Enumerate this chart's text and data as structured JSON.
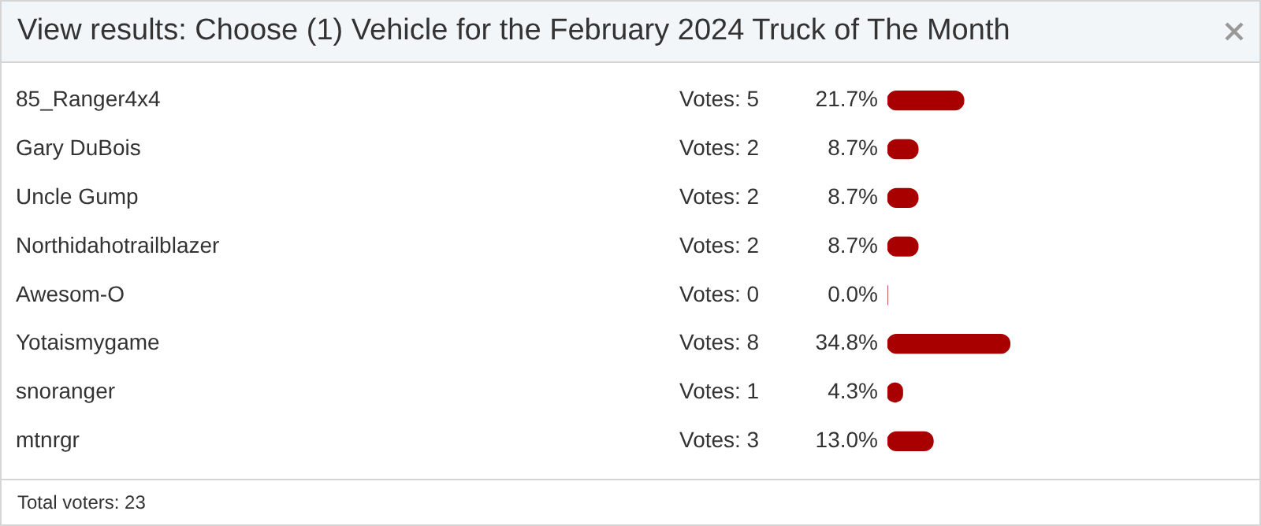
{
  "chart_data": {
    "type": "bar",
    "orientation": "horizontal",
    "title": "View results: Choose (1) Vehicle for the February 2024 Truck of The Month",
    "categories": [
      "85_Ranger4x4",
      "Gary DuBois",
      "Uncle Gump",
      "Northidahotrailblazer",
      "Awesom-O",
      "Yotaismygame",
      "snoranger",
      "mtnrgr"
    ],
    "values": [
      21.7,
      8.7,
      8.7,
      8.7,
      0.0,
      34.8,
      4.3,
      13.0
    ],
    "value_labels": [
      "21.7%",
      "8.7%",
      "8.7%",
      "8.7%",
      "0.0%",
      "34.8%",
      "4.3%",
      "13.0%"
    ],
    "color": "#a80000",
    "tick_labels": "y",
    "grid": false,
    "legend": false,
    "annotations": [
      "Votes: 5",
      "Votes: 2",
      "Votes: 2",
      "Votes: 2",
      "Votes: 0",
      "Votes: 8",
      "Votes: 1",
      "Votes: 3",
      "Total voters: 23"
    ]
  }
}
